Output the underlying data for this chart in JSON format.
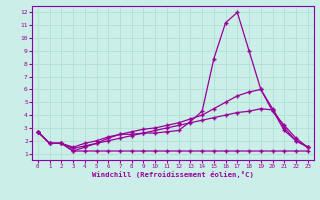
{
  "xlabel": "Windchill (Refroidissement éolien,°C)",
  "background_color": "#cceee8",
  "grid_color": "#aaddcc",
  "line_color": "#990099",
  "spine_color": "#8800aa",
  "xlim": [
    -0.5,
    23.5
  ],
  "ylim": [
    0.5,
    12.5
  ],
  "xticks": [
    0,
    1,
    2,
    3,
    4,
    5,
    6,
    7,
    8,
    9,
    10,
    11,
    12,
    13,
    14,
    15,
    16,
    17,
    18,
    19,
    20,
    21,
    22,
    23
  ],
  "yticks": [
    1,
    2,
    3,
    4,
    5,
    6,
    7,
    8,
    9,
    10,
    11,
    12
  ],
  "series": [
    [
      2.7,
      1.8,
      1.8,
      1.2,
      1.5,
      1.8,
      2.2,
      2.5,
      2.5,
      2.6,
      2.6,
      2.7,
      2.8,
      3.5,
      4.3,
      8.4,
      11.2,
      12.0,
      9.0,
      6.0,
      4.5,
      3.0,
      2.0,
      1.5
    ],
    [
      2.7,
      1.8,
      1.8,
      1.5,
      1.8,
      2.0,
      2.3,
      2.5,
      2.7,
      2.9,
      3.0,
      3.2,
      3.4,
      3.7,
      4.0,
      4.5,
      5.0,
      5.5,
      5.8,
      6.0,
      4.3,
      3.2,
      2.2,
      1.5
    ],
    [
      2.7,
      1.8,
      1.8,
      1.4,
      1.6,
      1.8,
      2.0,
      2.2,
      2.4,
      2.6,
      2.8,
      3.0,
      3.2,
      3.4,
      3.6,
      3.8,
      4.0,
      4.2,
      4.3,
      4.5,
      4.4,
      2.8,
      2.0,
      1.5
    ],
    [
      2.7,
      1.8,
      1.8,
      1.2,
      1.2,
      1.2,
      1.2,
      1.2,
      1.2,
      1.2,
      1.2,
      1.2,
      1.2,
      1.2,
      1.2,
      1.2,
      1.2,
      1.2,
      1.2,
      1.2,
      1.2,
      1.2,
      1.2,
      1.2
    ]
  ]
}
